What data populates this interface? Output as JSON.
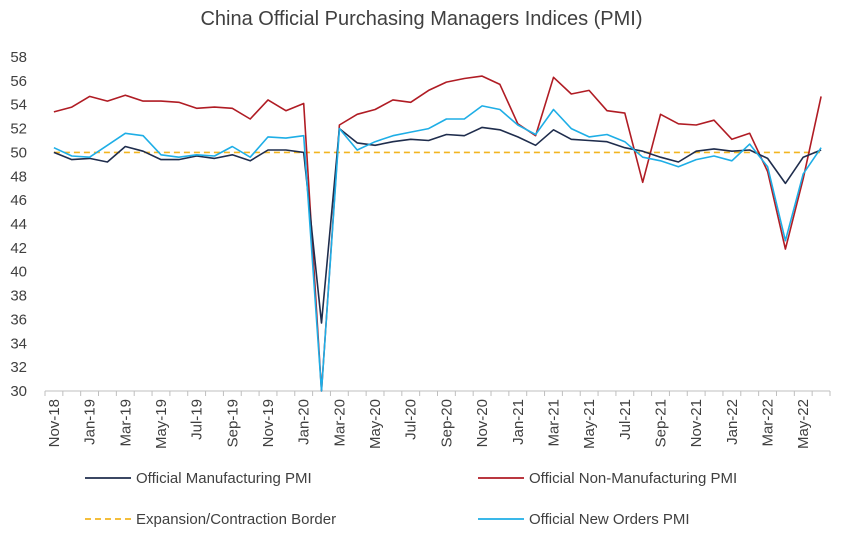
{
  "chart_data": {
    "type": "line",
    "title": "China Official Purchasing Managers Indices (PMI)",
    "xlabel": "",
    "ylabel": "",
    "ylim": [
      30,
      58
    ],
    "yticks": [
      30,
      32,
      34,
      36,
      38,
      40,
      42,
      44,
      46,
      48,
      50,
      52,
      54,
      56,
      58
    ],
    "grid": false,
    "legend_position": "bottom",
    "x": [
      "Nov-18",
      "Dec-18",
      "Jan-19",
      "Feb-19",
      "Mar-19",
      "Apr-19",
      "May-19",
      "Jun-19",
      "Jul-19",
      "Aug-19",
      "Sep-19",
      "Oct-19",
      "Nov-19",
      "Dec-19",
      "Jan-20",
      "Feb-20",
      "Mar-20",
      "Apr-20",
      "May-20",
      "Jun-20",
      "Jul-20",
      "Aug-20",
      "Sep-20",
      "Oct-20",
      "Nov-20",
      "Dec-20",
      "Jan-21",
      "Feb-21",
      "Mar-21",
      "Apr-21",
      "May-21",
      "Jun-21",
      "Jul-21",
      "Aug-21",
      "Sep-21",
      "Oct-21",
      "Nov-21",
      "Dec-21",
      "Jan-22",
      "Feb-22",
      "Mar-22",
      "Apr-22",
      "May-22",
      "Jun-22"
    ],
    "x_tick_labels": [
      "Nov-18",
      "Jan-19",
      "Mar-19",
      "May-19",
      "Jul-19",
      "Sep-19",
      "Nov-19",
      "Jan-20",
      "Mar-20",
      "May-20",
      "Jul-20",
      "Sep-20",
      "Nov-20",
      "Jan-21",
      "Mar-21",
      "May-21",
      "Jul-21",
      "Sep-21",
      "Nov-21",
      "Jan-22",
      "Mar-22",
      "May-22"
    ],
    "series": [
      {
        "name": "Official Manufacturing PMI",
        "color": "#1f2d4d",
        "style": "solid",
        "values": [
          50.0,
          49.4,
          49.5,
          49.2,
          50.5,
          50.1,
          49.4,
          49.4,
          49.7,
          49.5,
          49.8,
          49.3,
          50.2,
          50.2,
          50.0,
          35.7,
          52.0,
          50.8,
          50.6,
          50.9,
          51.1,
          51.0,
          51.5,
          51.4,
          52.1,
          51.9,
          51.3,
          50.6,
          51.9,
          51.1,
          51.0,
          50.9,
          50.4,
          50.1,
          49.6,
          49.2,
          50.1,
          50.3,
          50.1,
          50.2,
          49.5,
          47.4,
          49.6,
          50.2
        ]
      },
      {
        "name": "Official Non-Manufacturing PMI",
        "color": "#b01c24",
        "style": "solid",
        "values": [
          53.4,
          53.8,
          54.7,
          54.3,
          54.8,
          54.3,
          54.3,
          54.2,
          53.7,
          53.8,
          53.7,
          52.8,
          54.4,
          53.5,
          54.1,
          29.6,
          52.3,
          53.2,
          53.6,
          54.4,
          54.2,
          55.2,
          55.9,
          56.2,
          56.4,
          55.7,
          52.4,
          51.4,
          56.3,
          54.9,
          55.2,
          53.5,
          53.3,
          47.5,
          53.2,
          52.4,
          52.3,
          52.7,
          51.1,
          51.6,
          48.4,
          41.9,
          47.8,
          54.7
        ]
      },
      {
        "name": "Expansion/Contraction Border",
        "color": "#f2b520",
        "style": "dashed",
        "values": [
          50,
          50,
          50,
          50,
          50,
          50,
          50,
          50,
          50,
          50,
          50,
          50,
          50,
          50,
          50,
          50,
          50,
          50,
          50,
          50,
          50,
          50,
          50,
          50,
          50,
          50,
          50,
          50,
          50,
          50,
          50,
          50,
          50,
          50,
          50,
          50,
          50,
          50,
          50,
          50,
          50,
          50,
          50,
          50
        ]
      },
      {
        "name": "Official New Orders PMI",
        "color": "#1eaee6",
        "style": "solid",
        "values": [
          50.4,
          49.7,
          49.6,
          50.6,
          51.6,
          51.4,
          49.8,
          49.6,
          49.8,
          49.7,
          50.5,
          49.6,
          51.3,
          51.2,
          51.4,
          29.3,
          52.0,
          50.2,
          50.9,
          51.4,
          51.7,
          52.0,
          52.8,
          52.8,
          53.9,
          53.6,
          52.3,
          51.5,
          53.6,
          52.0,
          51.3,
          51.5,
          50.9,
          49.6,
          49.3,
          48.8,
          49.4,
          49.7,
          49.3,
          50.7,
          48.8,
          42.6,
          48.2,
          50.4
        ]
      }
    ]
  }
}
